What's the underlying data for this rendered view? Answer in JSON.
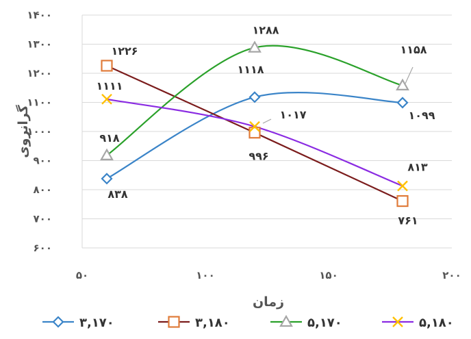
{
  "chart_data": {
    "type": "line",
    "xlabel": "زمان",
    "ylabel": "گرانروی",
    "xlim": [
      50,
      200
    ],
    "ylim": [
      600,
      1400
    ],
    "x_ticks": [
      50,
      100,
      150,
      200
    ],
    "x_tick_labels": [
      "۵۰",
      "۱۰۰",
      "۱۵۰",
      "۲۰۰"
    ],
    "y_ticks": [
      600,
      700,
      800,
      900,
      1000,
      1100,
      1200,
      1300,
      1400
    ],
    "y_tick_labels": [
      "۶۰۰",
      "۷۰۰",
      "۸۰۰",
      "۹۰۰",
      "۱۰۰۰",
      "۱۱۰۰",
      "۱۲۰۰",
      "۱۳۰۰",
      "۱۴۰۰"
    ],
    "grid": true,
    "legend_position": "bottom",
    "x": [
      60,
      120,
      180
    ],
    "series": [
      {
        "name": "۳,۱۷۰",
        "color": "#3a84c8",
        "marker": "diamond",
        "smooth": true,
        "values": [
          838,
          1118,
          1099
        ],
        "labels": [
          "۸۳۸",
          "۱۱۱۸",
          "۱۰۹۹"
        ]
      },
      {
        "name": "۳,۱۸۰",
        "color": "#7b1c1c",
        "marker_color": "#e07b3a",
        "marker": "square",
        "smooth": false,
        "values": [
          1226,
          996,
          761
        ],
        "labels": [
          "۱۲۲۶",
          "۹۹۶",
          "۷۶۱"
        ]
      },
      {
        "name": "۵,۱۷۰",
        "color": "#2aa12a",
        "marker_color": "#a6a6a6",
        "marker": "triangle",
        "smooth": true,
        "values": [
          918,
          1288,
          1158
        ],
        "labels": [
          "۹۱۸",
          "۱۲۸۸",
          "۱۱۵۸"
        ]
      },
      {
        "name": "۵,۱۸۰",
        "color": "#8a2be2",
        "marker_color": "#ffc000",
        "marker": "x",
        "smooth": true,
        "values": [
          1111,
          1017,
          813
        ],
        "labels": [
          "۱۱۱۱",
          "۱۰۱۷",
          "۸۱۳"
        ]
      }
    ]
  }
}
